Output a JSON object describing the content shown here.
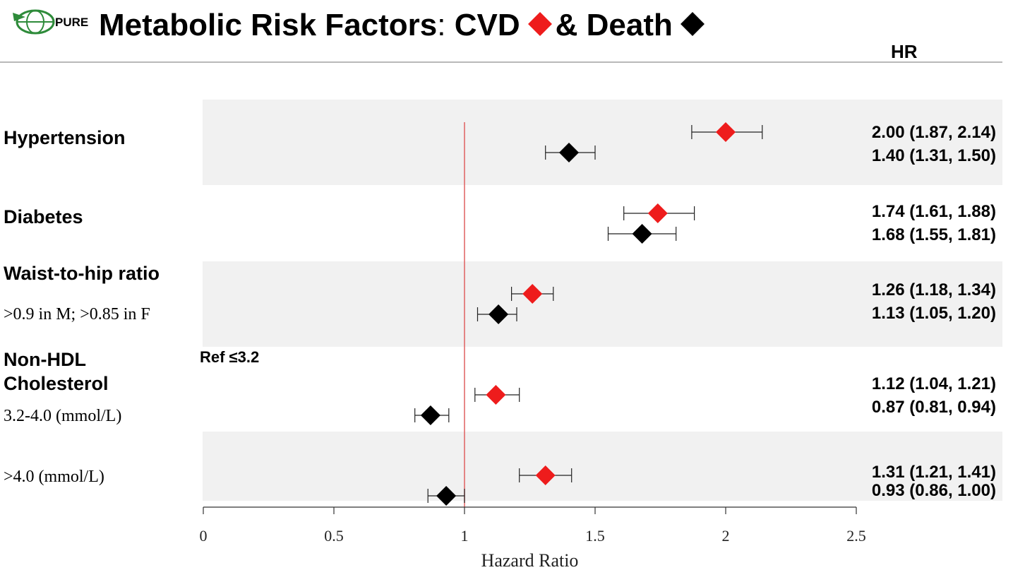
{
  "header": {
    "logo_text": "PURE",
    "title_main": "Metabolic Risk Factors",
    "title_sep": ":",
    "title_cvd": "CVD",
    "title_death": "& Death",
    "hr_column": "HR"
  },
  "colors": {
    "cvd": "#ee1c1c",
    "death": "#000000",
    "band": "#f1f1f1",
    "ref_line": "#e06060"
  },
  "rows": [
    {
      "label": "Hypertension",
      "sublabel": "",
      "cvd_hr_text": "2.00 (1.87, 2.14)",
      "death_hr_text": "1.40 (1.31, 1.50)"
    },
    {
      "label": "Diabetes",
      "sublabel": "",
      "cvd_hr_text": "1.74 (1.61, 1.88)",
      "death_hr_text": "1.68 (1.55, 1.81)"
    },
    {
      "label": "Waist-to-hip ratio",
      "sublabel": ">0.9 in M; >0.85 in F",
      "cvd_hr_text": "1.26 (1.18, 1.34)",
      "death_hr_text": "1.13 (1.05, 1.20)"
    },
    {
      "label": "Non-HDL",
      "label2": "Cholesterol",
      "sublabel": "3.2-4.0 (mmol/L)",
      "ref_note": "Ref ≤3.2",
      "cvd_hr_text": "1.12 (1.04, 1.21)",
      "death_hr_text": "0.87 (0.81, 0.94)"
    },
    {
      "label": "",
      "sublabel": ">4.0 (mmol/L)",
      "cvd_hr_text": "1.31 (1.21, 1.41)",
      "death_hr_text": "0.93 (0.86, 1.00)"
    }
  ],
  "chart_data": {
    "type": "scatter",
    "subtype": "forest-plot",
    "xlabel": "Hazard Ratio",
    "xlim": [
      0,
      2.5
    ],
    "xticks": [
      0,
      0.5,
      1,
      1.5,
      2,
      2.5
    ],
    "xtick_labels": [
      "0",
      "0.5",
      "1",
      "1.5",
      "2",
      "2.5"
    ],
    "reference_line": 1,
    "categories": [
      "Hypertension",
      "Diabetes",
      "Waist-to-hip ratio >0.9 in M; >0.85 in F",
      "Non-HDL Cholesterol 3.2-4.0 (mmol/L)",
      "Non-HDL Cholesterol >4.0 (mmol/L)"
    ],
    "series": [
      {
        "name": "CVD",
        "color": "#ee1c1c",
        "values": [
          2.0,
          1.74,
          1.26,
          1.12,
          1.31
        ],
        "lower": [
          1.87,
          1.61,
          1.18,
          1.04,
          1.21
        ],
        "upper": [
          2.14,
          1.88,
          1.34,
          1.21,
          1.41
        ]
      },
      {
        "name": "Death",
        "color": "#000000",
        "values": [
          1.4,
          1.68,
          1.13,
          0.87,
          0.93
        ],
        "lower": [
          1.31,
          1.55,
          1.05,
          0.81,
          0.86
        ],
        "upper": [
          1.5,
          1.81,
          1.2,
          0.94,
          1.0
        ]
      }
    ]
  }
}
